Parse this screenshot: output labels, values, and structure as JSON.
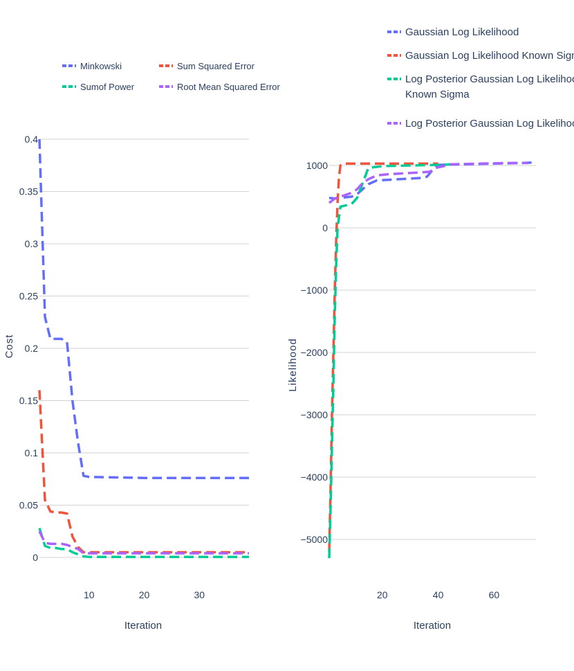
{
  "chart_data": [
    {
      "type": "line",
      "xlabel": "Iteration",
      "ylabel": "Cost",
      "xlim": [
        1,
        39
      ],
      "ylim": [
        0,
        0.4
      ],
      "xticks": [
        10,
        20,
        30
      ],
      "yticks": [
        0,
        0.05,
        0.1,
        0.15,
        0.2,
        0.25,
        0.3,
        0.35,
        0.4
      ],
      "ytick_labels": [
        "0",
        "0.05",
        "0.1",
        "0.15",
        "0.2",
        "0.25",
        "0.3",
        "0.35",
        "0.4"
      ],
      "grid": true,
      "legend_position": "top",
      "series": [
        {
          "name": "Minkowski",
          "color": "#636efa",
          "x": [
            1,
            2,
            3,
            4,
            5,
            6,
            7,
            8,
            9,
            10,
            20,
            30,
            39
          ],
          "y": [
            0.4,
            0.23,
            0.209,
            0.209,
            0.209,
            0.206,
            0.15,
            0.11,
            0.078,
            0.077,
            0.076,
            0.076,
            0.076
          ]
        },
        {
          "name": "Sum Squared Error",
          "color": "#ef553b",
          "x": [
            1,
            2,
            3,
            4,
            5,
            6,
            7,
            8,
            9,
            10,
            20,
            30,
            39
          ],
          "y": [
            0.16,
            0.055,
            0.044,
            0.043,
            0.043,
            0.042,
            0.02,
            0.01,
            0.005,
            0.005,
            0.005,
            0.005,
            0.005
          ]
        },
        {
          "name": "Sumof Power",
          "color": "#00cc96",
          "x": [
            1,
            2,
            3,
            4,
            5,
            6,
            7,
            8,
            9,
            10,
            20,
            30,
            39
          ],
          "y": [
            0.028,
            0.011,
            0.009,
            0.009,
            0.008,
            0.008,
            0.005,
            0.003,
            0.001,
            0.0005,
            0.0005,
            0.0005,
            0.0005
          ]
        },
        {
          "name": "Root Mean Squared Error",
          "color": "#ab63fa",
          "x": [
            1,
            2,
            3,
            4,
            5,
            6,
            7,
            8,
            9,
            10,
            20,
            30,
            39
          ],
          "y": [
            0.025,
            0.014,
            0.013,
            0.013,
            0.013,
            0.012,
            0.01,
            0.008,
            0.004,
            0.004,
            0.004,
            0.004,
            0.004
          ]
        }
      ]
    },
    {
      "type": "line",
      "xlabel": "Iteration",
      "ylabel": "Likelihood",
      "xlim": [
        1,
        75
      ],
      "ylim": [
        -5300,
        1100
      ],
      "xticks": [
        20,
        40,
        60
      ],
      "yticks": [
        -5000,
        -4000,
        -3000,
        -2000,
        -1000,
        0,
        1000
      ],
      "ytick_labels": [
        "−5000",
        "−4000",
        "−3000",
        "−2000",
        "−1000",
        "0",
        "1000"
      ],
      "grid": true,
      "legend_position": "top-right",
      "series": [
        {
          "name": "Gaussian Log Likelihood",
          "color": "#636efa",
          "x": [
            1,
            3,
            5,
            7,
            9,
            11,
            13,
            15,
            18,
            22,
            26,
            30,
            34,
            36,
            38,
            40,
            50,
            60,
            70,
            75
          ],
          "y": [
            480,
            470,
            480,
            490,
            500,
            540,
            620,
            700,
            760,
            770,
            780,
            790,
            800,
            820,
            930,
            1010,
            1020,
            1030,
            1040,
            1050
          ]
        },
        {
          "name": "Gaussian Log Likelihood Known Sigma",
          "color": "#ef553b",
          "x": [
            1,
            1.5,
            2,
            2.5,
            3,
            3.5,
            4,
            4.5,
            5,
            6,
            10,
            20,
            30,
            40
          ],
          "y": [
            -5200,
            -4200,
            -3000,
            -2000,
            -1000,
            -200,
            400,
            800,
            1000,
            1030,
            1030,
            1030,
            1030,
            1030
          ]
        },
        {
          "name": "Log Posterior Gaussian Log Likelihood Known Sigma",
          "color": "#00cc96",
          "x": [
            1,
            1.5,
            2,
            2.5,
            3,
            3.5,
            4,
            5,
            7,
            9,
            11,
            13,
            15,
            20,
            30,
            40,
            45
          ],
          "y": [
            -5300,
            -4500,
            -3500,
            -2500,
            -1400,
            -600,
            0,
            340,
            360,
            380,
            480,
            720,
            960,
            990,
            1000,
            1010,
            1020
          ]
        },
        {
          "name": "Log Posterior Gaussian Log Likelihood",
          "color": "#ab63fa",
          "x": [
            1,
            3,
            5,
            7,
            9,
            11,
            13,
            15,
            18,
            22,
            26,
            30,
            34,
            37,
            39,
            45,
            55,
            65,
            72
          ],
          "y": [
            400,
            470,
            500,
            530,
            560,
            620,
            720,
            780,
            840,
            860,
            870,
            880,
            890,
            900,
            960,
            1020,
            1030,
            1040,
            1040
          ]
        }
      ]
    }
  ]
}
